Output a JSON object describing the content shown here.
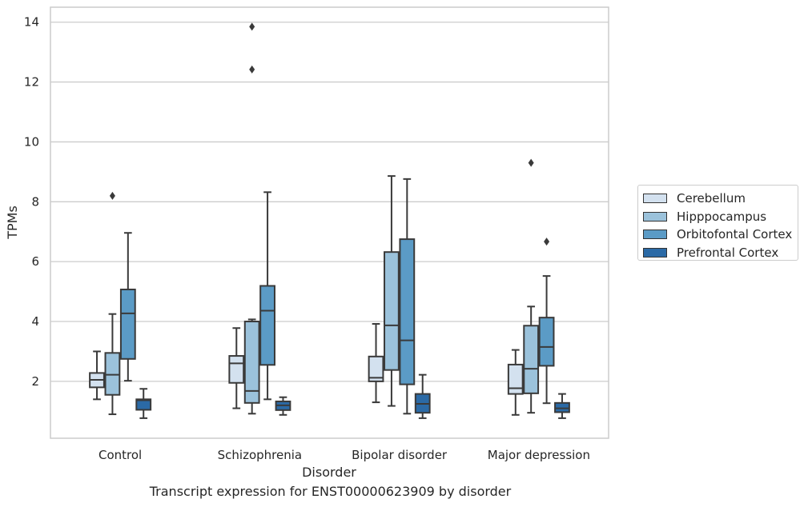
{
  "caption": "Transcript expression for ENST00000623909 by disorder",
  "chart_data": {
    "type": "box",
    "xlabel": "Disorder",
    "ylabel": "TPMs",
    "ylim": [
      0.1,
      14.5
    ],
    "yticks": [
      2,
      4,
      6,
      8,
      10,
      12,
      14
    ],
    "grid": "horizontal",
    "legend_position": "right",
    "categories": [
      "Control",
      "Schizophrenia",
      "Bipolar disorder",
      "Major depression"
    ],
    "series": [
      {
        "name": "Cerebellum",
        "color": "#d3e1ef",
        "boxes": [
          {
            "whislo": 1.4,
            "q1": 1.8,
            "med": 2.05,
            "q3": 2.28,
            "whishi": 3.0,
            "fliers": []
          },
          {
            "whislo": 1.1,
            "q1": 1.95,
            "med": 2.6,
            "q3": 2.85,
            "whishi": 3.78,
            "fliers": []
          },
          {
            "whislo": 1.3,
            "q1": 2.0,
            "med": 2.12,
            "q3": 2.83,
            "whishi": 3.92,
            "fliers": []
          },
          {
            "whislo": 0.88,
            "q1": 1.58,
            "med": 1.77,
            "q3": 2.56,
            "whishi": 3.05,
            "fliers": []
          }
        ]
      },
      {
        "name": "Hipppocampus",
        "color": "#9bc2db",
        "boxes": [
          {
            "whislo": 0.9,
            "q1": 1.55,
            "med": 2.22,
            "q3": 2.95,
            "whishi": 4.25,
            "fliers": [
              8.2
            ]
          },
          {
            "whislo": 0.92,
            "q1": 1.28,
            "med": 1.68,
            "q3": 4.0,
            "whishi": 4.07,
            "fliers": [
              13.85,
              12.42
            ]
          },
          {
            "whislo": 1.18,
            "q1": 2.38,
            "med": 3.87,
            "q3": 6.32,
            "whishi": 8.86,
            "fliers": []
          },
          {
            "whislo": 0.95,
            "q1": 1.6,
            "med": 2.42,
            "q3": 3.86,
            "whishi": 4.5,
            "fliers": [
              9.3
            ]
          }
        ]
      },
      {
        "name": "Orbitofontal Cortex",
        "color": "#5b9bc6",
        "boxes": [
          {
            "whislo": 2.02,
            "q1": 2.75,
            "med": 4.27,
            "q3": 5.07,
            "whishi": 6.96,
            "fliers": []
          },
          {
            "whislo": 1.4,
            "q1": 2.55,
            "med": 4.36,
            "q3": 5.19,
            "whishi": 8.32,
            "fliers": []
          },
          {
            "whislo": 0.92,
            "q1": 1.9,
            "med": 3.37,
            "q3": 6.75,
            "whishi": 8.76,
            "fliers": []
          },
          {
            "whislo": 1.27,
            "q1": 2.52,
            "med": 3.15,
            "q3": 4.13,
            "whishi": 5.52,
            "fliers": [
              6.67
            ]
          }
        ]
      },
      {
        "name": "Prefrontal Cortex",
        "color": "#2b6aa6",
        "boxes": [
          {
            "whislo": 0.77,
            "q1": 1.05,
            "med": 1.37,
            "q3": 1.4,
            "whishi": 1.75,
            "fliers": []
          },
          {
            "whislo": 0.88,
            "q1": 1.04,
            "med": 1.2,
            "q3": 1.33,
            "whishi": 1.47,
            "fliers": []
          },
          {
            "whislo": 0.77,
            "q1": 0.95,
            "med": 1.25,
            "q3": 1.58,
            "whishi": 2.22,
            "fliers": []
          },
          {
            "whislo": 0.77,
            "q1": 0.97,
            "med": 1.1,
            "q3": 1.28,
            "whishi": 1.58,
            "fliers": []
          }
        ]
      }
    ]
  }
}
